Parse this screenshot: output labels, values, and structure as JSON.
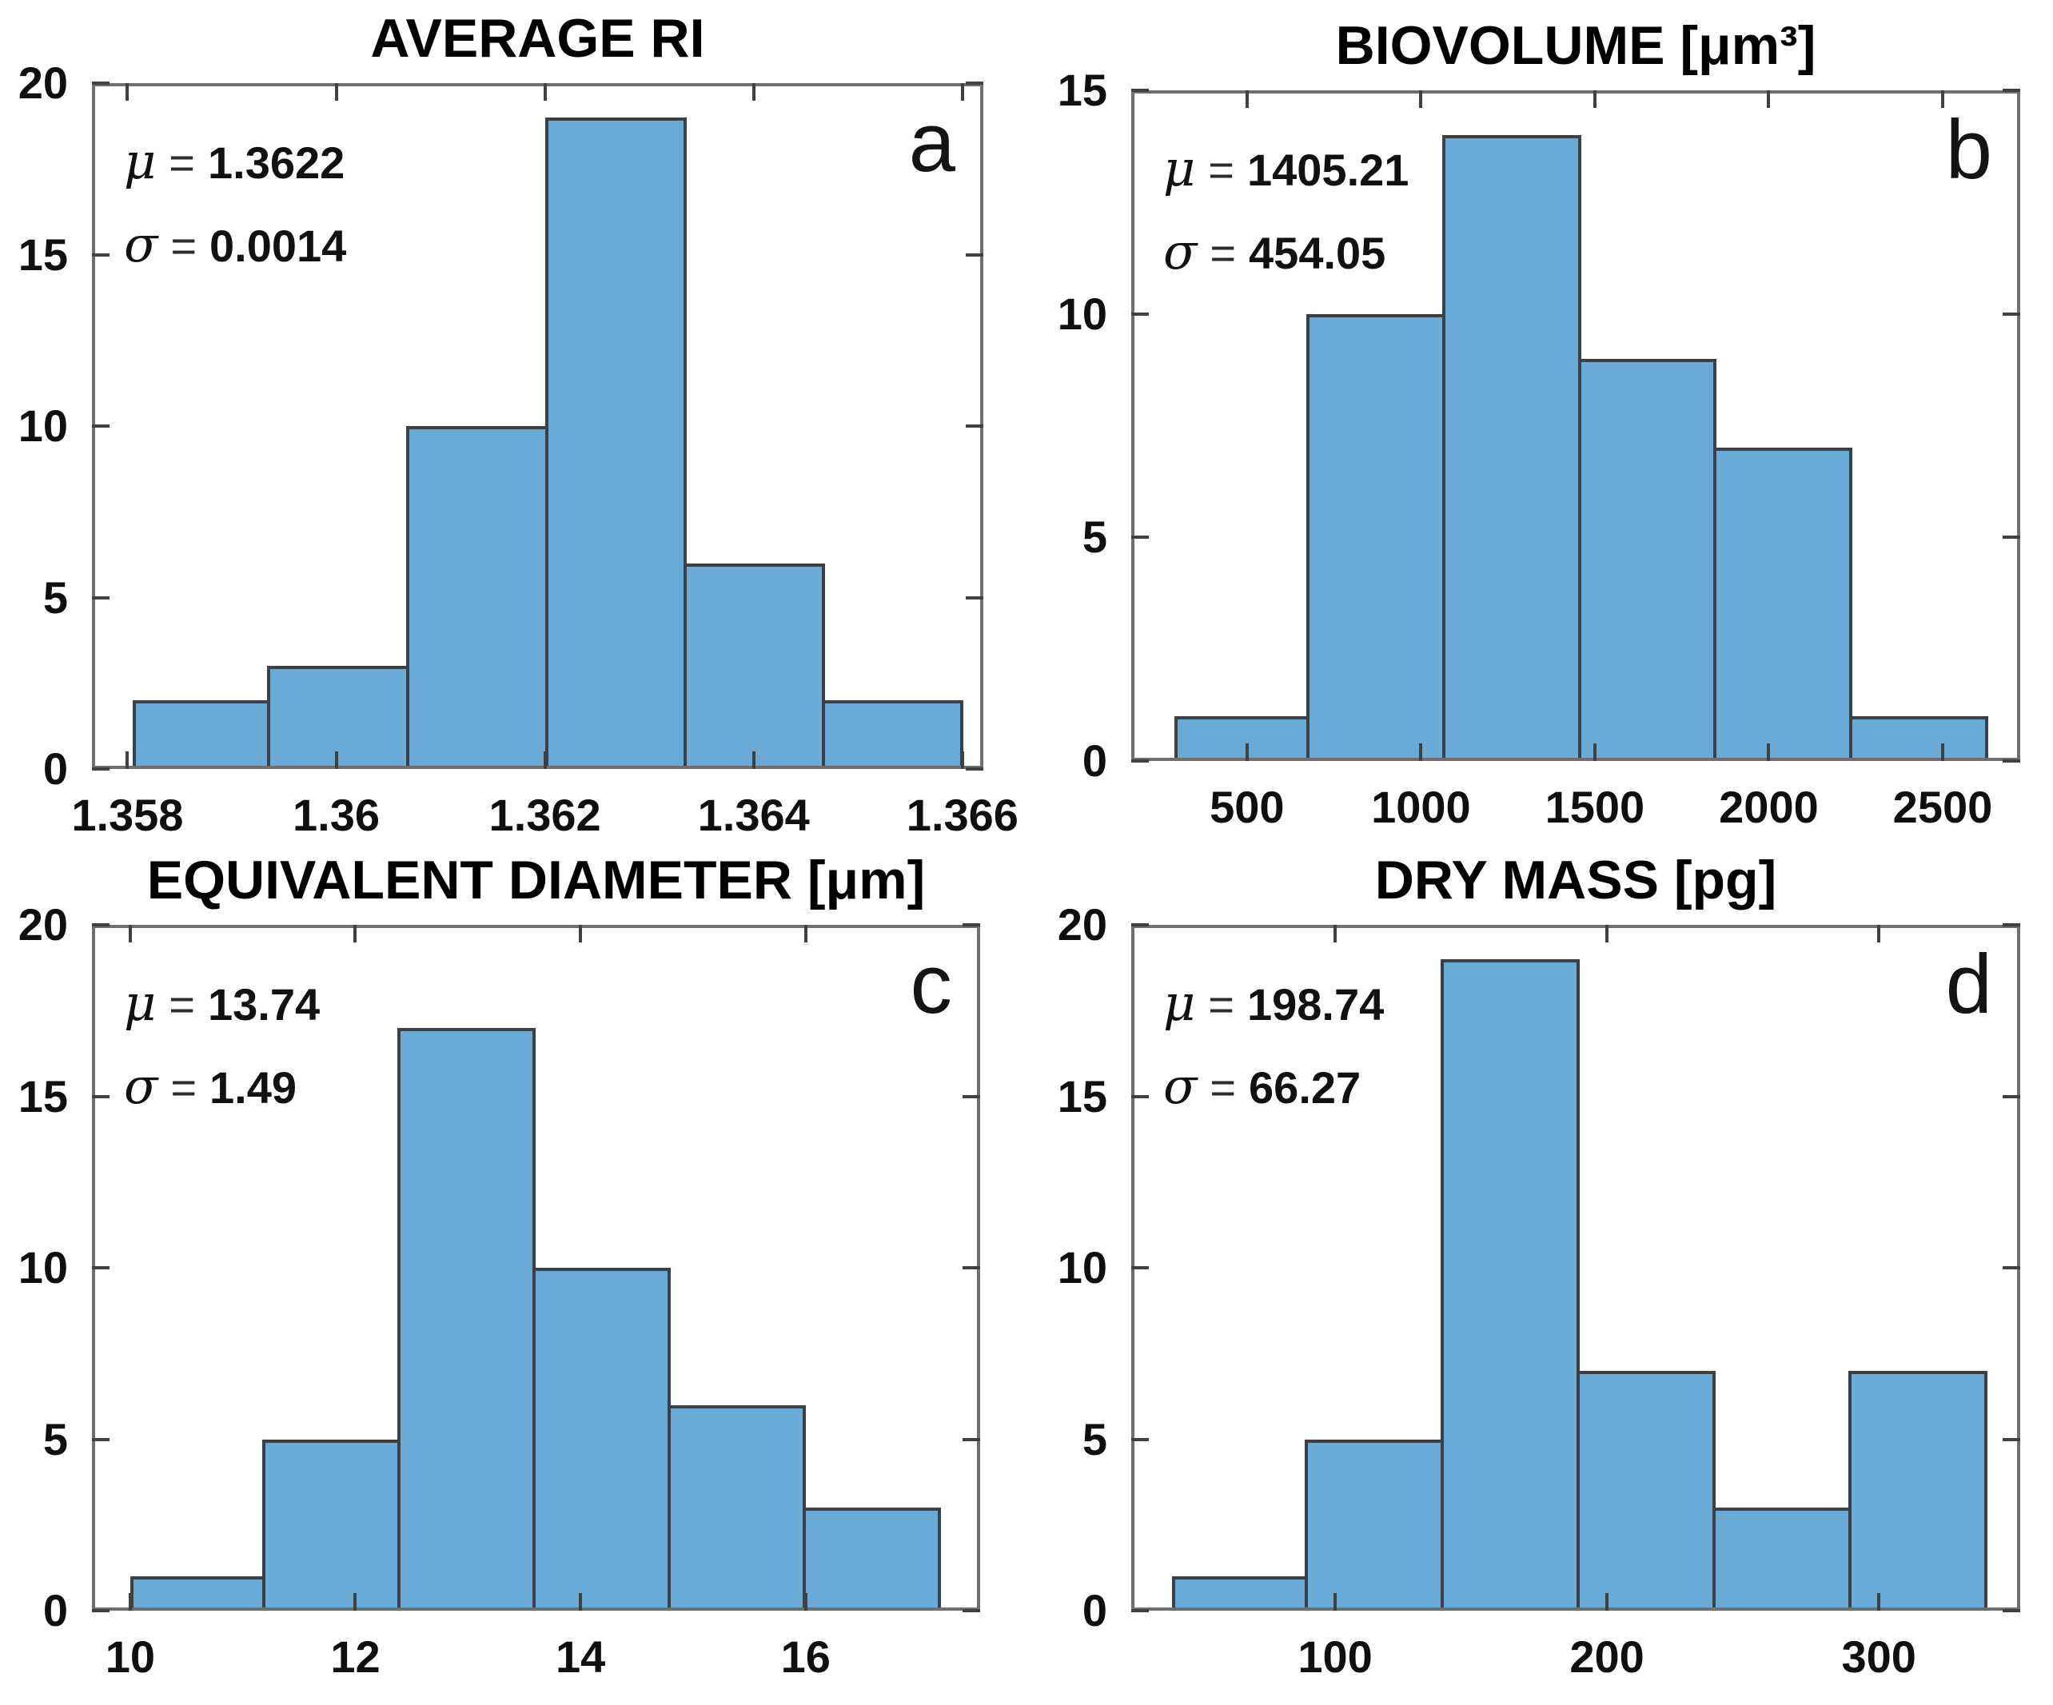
{
  "figure": {
    "background": "#ffffff",
    "bar_fill": "#69AAD6",
    "bar_edge": "#3A4046",
    "axis_color": "#6F6F6F",
    "tick_color": "#404040",
    "text_color": "#0f0f0f"
  },
  "chart_data": [
    {
      "type": "bar",
      "panel_letter": "a",
      "title": "AVERAGE RI",
      "stats": {
        "mu_symbol": "μ",
        "sigma_symbol": "σ",
        "equals": "=",
        "mu": "1.3622",
        "sigma": "0.0014"
      },
      "xlim": [
        1.35766,
        1.3662
      ],
      "ylim": [
        0,
        20
      ],
      "xticks": [
        {
          "value": 1.358,
          "label": "1.358"
        },
        {
          "value": 1.36,
          "label": "1.36"
        },
        {
          "value": 1.362,
          "label": "1.362"
        },
        {
          "value": 1.364,
          "label": "1.364"
        },
        {
          "value": 1.366,
          "label": "1.366"
        }
      ],
      "yticks": [
        {
          "value": 0,
          "label": "0"
        },
        {
          "value": 5,
          "label": "5"
        },
        {
          "value": 10,
          "label": "10"
        },
        {
          "value": 15,
          "label": "15"
        },
        {
          "value": 20,
          "label": "20"
        }
      ],
      "bin_edges": [
        1.35805,
        1.35937,
        1.3607,
        1.36203,
        1.36336,
        1.36468,
        1.36601
      ],
      "counts": [
        2,
        3,
        10,
        19,
        6,
        2
      ]
    },
    {
      "type": "bar",
      "panel_letter": "b",
      "title": "BIOVOLUME [μm³]",
      "stats": {
        "mu_symbol": "μ",
        "sigma_symbol": "σ",
        "equals": "=",
        "mu": "1405.21",
        "sigma": "454.05"
      },
      "xlim": [
        167,
        2723
      ],
      "ylim": [
        0,
        15
      ],
      "xticks": [
        {
          "value": 500,
          "label": "500"
        },
        {
          "value": 1000,
          "label": "1000"
        },
        {
          "value": 1500,
          "label": "1500"
        },
        {
          "value": 2000,
          "label": "2000"
        },
        {
          "value": 2500,
          "label": "2500"
        }
      ],
      "yticks": [
        {
          "value": 0,
          "label": "0"
        },
        {
          "value": 5,
          "label": "5"
        },
        {
          "value": 10,
          "label": "10"
        },
        {
          "value": 15,
          "label": "15"
        }
      ],
      "bin_edges": [
        290,
        680,
        1070,
        1460,
        1850,
        2240,
        2630
      ],
      "counts": [
        1,
        10,
        14,
        9,
        7,
        1
      ]
    },
    {
      "type": "bar",
      "panel_letter": "c",
      "title": "EQUIVALENT DIAMETER [μm]",
      "stats": {
        "mu_symbol": "μ",
        "sigma_symbol": "σ",
        "equals": "=",
        "mu": "13.74",
        "sigma": "1.49"
      },
      "xlim": [
        9.66,
        17.55
      ],
      "ylim": [
        0,
        20
      ],
      "xticks": [
        {
          "value": 10,
          "label": "10"
        },
        {
          "value": 12,
          "label": "12"
        },
        {
          "value": 14,
          "label": "14"
        },
        {
          "value": 16,
          "label": "16"
        }
      ],
      "yticks": [
        {
          "value": 0,
          "label": "0"
        },
        {
          "value": 5,
          "label": "5"
        },
        {
          "value": 10,
          "label": "10"
        },
        {
          "value": 15,
          "label": "15"
        },
        {
          "value": 20,
          "label": "20"
        }
      ],
      "bin_edges": [
        10.0,
        11.2,
        12.4,
        13.6,
        14.8,
        16.0,
        17.2
      ],
      "counts": [
        1,
        5,
        17,
        10,
        6,
        3
      ]
    },
    {
      "type": "bar",
      "panel_letter": "d",
      "title": "DRY MASS [pg]",
      "stats": {
        "mu_symbol": "μ",
        "sigma_symbol": "σ",
        "equals": "=",
        "mu": "198.74",
        "sigma": "66.27"
      },
      "xlim": [
        25,
        352
      ],
      "ylim": [
        0,
        20
      ],
      "xticks": [
        {
          "value": 100,
          "label": "100"
        },
        {
          "value": 200,
          "label": "200"
        },
        {
          "value": 300,
          "label": "300"
        }
      ],
      "yticks": [
        {
          "value": 0,
          "label": "0"
        },
        {
          "value": 5,
          "label": "5"
        },
        {
          "value": 10,
          "label": "10"
        },
        {
          "value": 15,
          "label": "15"
        },
        {
          "value": 20,
          "label": "20"
        }
      ],
      "bin_edges": [
        40,
        90,
        140,
        190,
        240,
        290,
        340
      ],
      "counts": [
        1,
        5,
        19,
        7,
        3,
        7
      ]
    }
  ]
}
